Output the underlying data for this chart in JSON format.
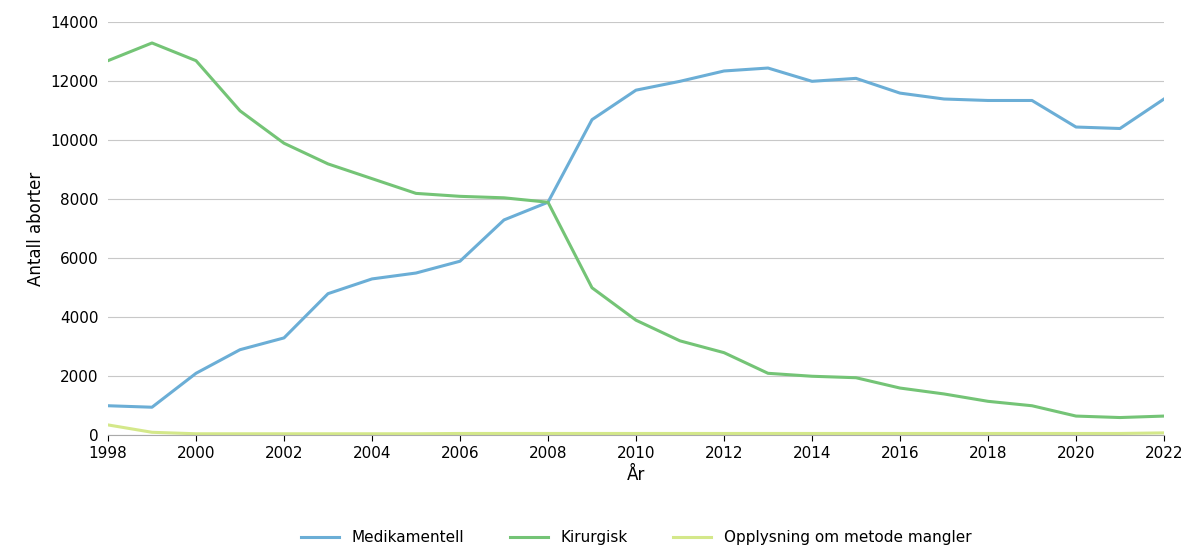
{
  "years": [
    1998,
    1999,
    2000,
    2001,
    2002,
    2003,
    2004,
    2005,
    2006,
    2007,
    2008,
    2009,
    2010,
    2011,
    2012,
    2013,
    2014,
    2015,
    2016,
    2017,
    2018,
    2019,
    2020,
    2021,
    2022
  ],
  "medikamentell": [
    1000,
    950,
    2100,
    2900,
    3300,
    4800,
    5300,
    5500,
    5900,
    7300,
    7900,
    10700,
    11700,
    12000,
    12350,
    12450,
    12000,
    12100,
    11600,
    11400,
    11350,
    11350,
    10450,
    10400,
    11400
  ],
  "kirurgisk": [
    12700,
    13300,
    12700,
    11000,
    9900,
    9200,
    8700,
    8200,
    8100,
    8050,
    7900,
    5000,
    3900,
    3200,
    2800,
    2100,
    2000,
    1950,
    1600,
    1400,
    1150,
    1000,
    650,
    600,
    650
  ],
  "opplysning": [
    350,
    100,
    50,
    50,
    50,
    50,
    50,
    50,
    60,
    60,
    60,
    60,
    60,
    60,
    60,
    60,
    60,
    60,
    60,
    60,
    60,
    60,
    60,
    60,
    80
  ],
  "medikamentell_color": "#6baed6",
  "kirurgisk_color": "#74c476",
  "opplysning_color": "#d4e88a",
  "xlabel": "År",
  "ylabel": "Antall aborter",
  "ylim": [
    0,
    14000
  ],
  "yticks": [
    0,
    2000,
    4000,
    6000,
    8000,
    10000,
    12000,
    14000
  ],
  "xticks": [
    1998,
    2000,
    2002,
    2004,
    2006,
    2008,
    2010,
    2012,
    2014,
    2016,
    2018,
    2020,
    2022
  ],
  "legend_labels": [
    "Medikamentell",
    "Kirurgisk",
    "Opplysning om metode mangler"
  ],
  "line_width": 2.2,
  "background_color": "#ffffff",
  "grid_color": "#c8c8c8"
}
